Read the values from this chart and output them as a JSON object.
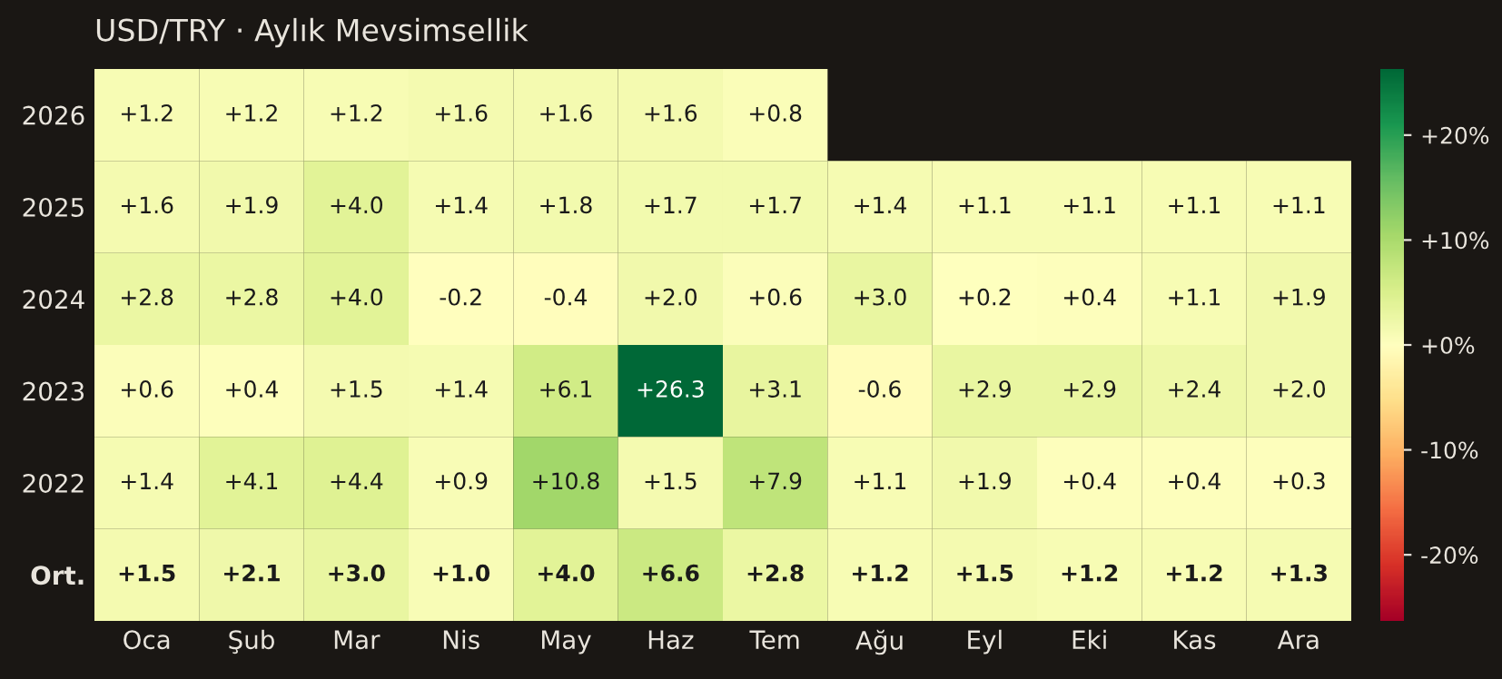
{
  "chart_data": {
    "type": "heatmap",
    "title": "USD/TRY · Aylık Mevsimsellik",
    "categories": [
      "Oca",
      "Şub",
      "Mar",
      "Nis",
      "May",
      "Haz",
      "Tem",
      "Ağu",
      "Eyl",
      "Eki",
      "Kas",
      "Ara"
    ],
    "y_categories": [
      "2026",
      "2025",
      "2024",
      "2023",
      "2022",
      "Ort."
    ],
    "cells": [
      [
        1.2,
        1.2,
        1.2,
        1.6,
        1.6,
        1.6,
        0.8,
        null,
        null,
        null,
        null,
        null
      ],
      [
        1.6,
        1.9,
        4.0,
        1.4,
        1.8,
        1.7,
        1.7,
        1.4,
        1.1,
        1.1,
        1.1,
        1.1
      ],
      [
        2.8,
        2.8,
        4.0,
        -0.2,
        -0.4,
        2.0,
        0.6,
        3.0,
        0.2,
        0.4,
        1.1,
        1.9
      ],
      [
        0.6,
        0.4,
        1.5,
        1.4,
        6.1,
        26.3,
        3.1,
        -0.6,
        2.9,
        2.9,
        2.4,
        2.0
      ],
      [
        1.4,
        4.1,
        4.4,
        0.9,
        10.8,
        1.5,
        7.9,
        1.1,
        1.9,
        0.4,
        0.4,
        0.3
      ],
      [
        1.5,
        2.1,
        3.0,
        1.0,
        4.0,
        6.6,
        2.8,
        1.2,
        1.5,
        1.2,
        1.2,
        1.3
      ]
    ],
    "cell_labels": [
      [
        "+1.2",
        "+1.2",
        "+1.2",
        "+1.6",
        "+1.6",
        "+1.6",
        "+0.8",
        null,
        null,
        null,
        null,
        null
      ],
      [
        "+1.6",
        "+1.9",
        "+4.0",
        "+1.4",
        "+1.8",
        "+1.7",
        "+1.7",
        "+1.4",
        "+1.1",
        "+1.1",
        "+1.1",
        "+1.1"
      ],
      [
        "+2.8",
        "+2.8",
        "+4.0",
        "-0.2",
        "-0.4",
        "+2.0",
        "+0.6",
        "+3.0",
        "+0.2",
        "+0.4",
        "+1.1",
        "+1.9"
      ],
      [
        "+0.6",
        "+0.4",
        "+1.5",
        "+1.4",
        "+6.1",
        "+26.3",
        "+3.1",
        "-0.6",
        "+2.9",
        "+2.9",
        "+2.4",
        "+2.0"
      ],
      [
        "+1.4",
        "+4.1",
        "+4.4",
        "+0.9",
        "+10.8",
        "+1.5",
        "+7.9",
        "+1.1",
        "+1.9",
        "+0.4",
        "+0.4",
        "+0.3"
      ],
      [
        "+1.5",
        "+2.1",
        "+3.0",
        "+1.0",
        "+4.0",
        "+6.6",
        "+2.8",
        "+1.2",
        "+1.5",
        "+1.2",
        "+1.2",
        "+1.3"
      ]
    ],
    "clim": [
      -26.3,
      26.3
    ],
    "cticks": [
      {
        "value": -20,
        "label": "-20%"
      },
      {
        "value": -10,
        "label": "-10%"
      },
      {
        "value": 0,
        "label": "+0%"
      },
      {
        "value": 10,
        "label": "+10%"
      },
      {
        "value": 20,
        "label": "+20%"
      }
    ]
  }
}
